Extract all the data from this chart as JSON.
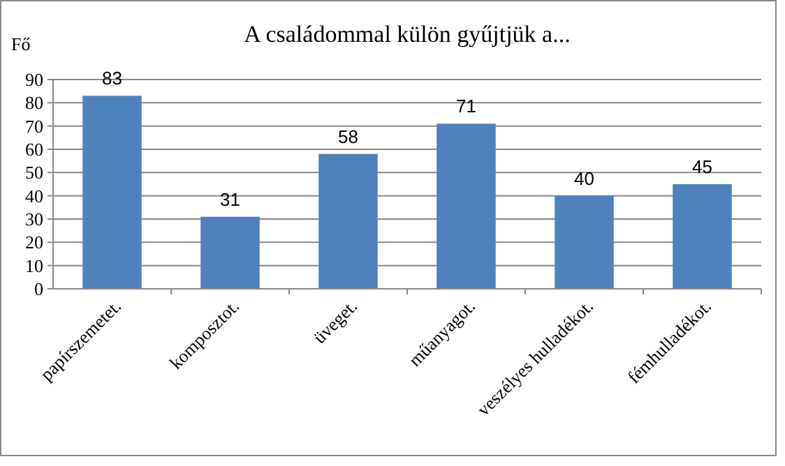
{
  "chart_data": {
    "type": "bar",
    "title": "A családommal külön gyűjtjük a...",
    "ylabel": "Fő",
    "categories": [
      "papírszemetet.",
      "komposztot.",
      "üveget.",
      "műanyagot.",
      "veszélyes hulladékot.",
      "fémhulladékot."
    ],
    "values": [
      83,
      31,
      58,
      71,
      40,
      45
    ],
    "color": "#4f81bd",
    "ylim": [
      0,
      90
    ],
    "yticks": [
      0,
      10,
      20,
      30,
      40,
      50,
      60,
      70,
      80,
      90
    ],
    "grid": "y",
    "data_labels": true
  }
}
